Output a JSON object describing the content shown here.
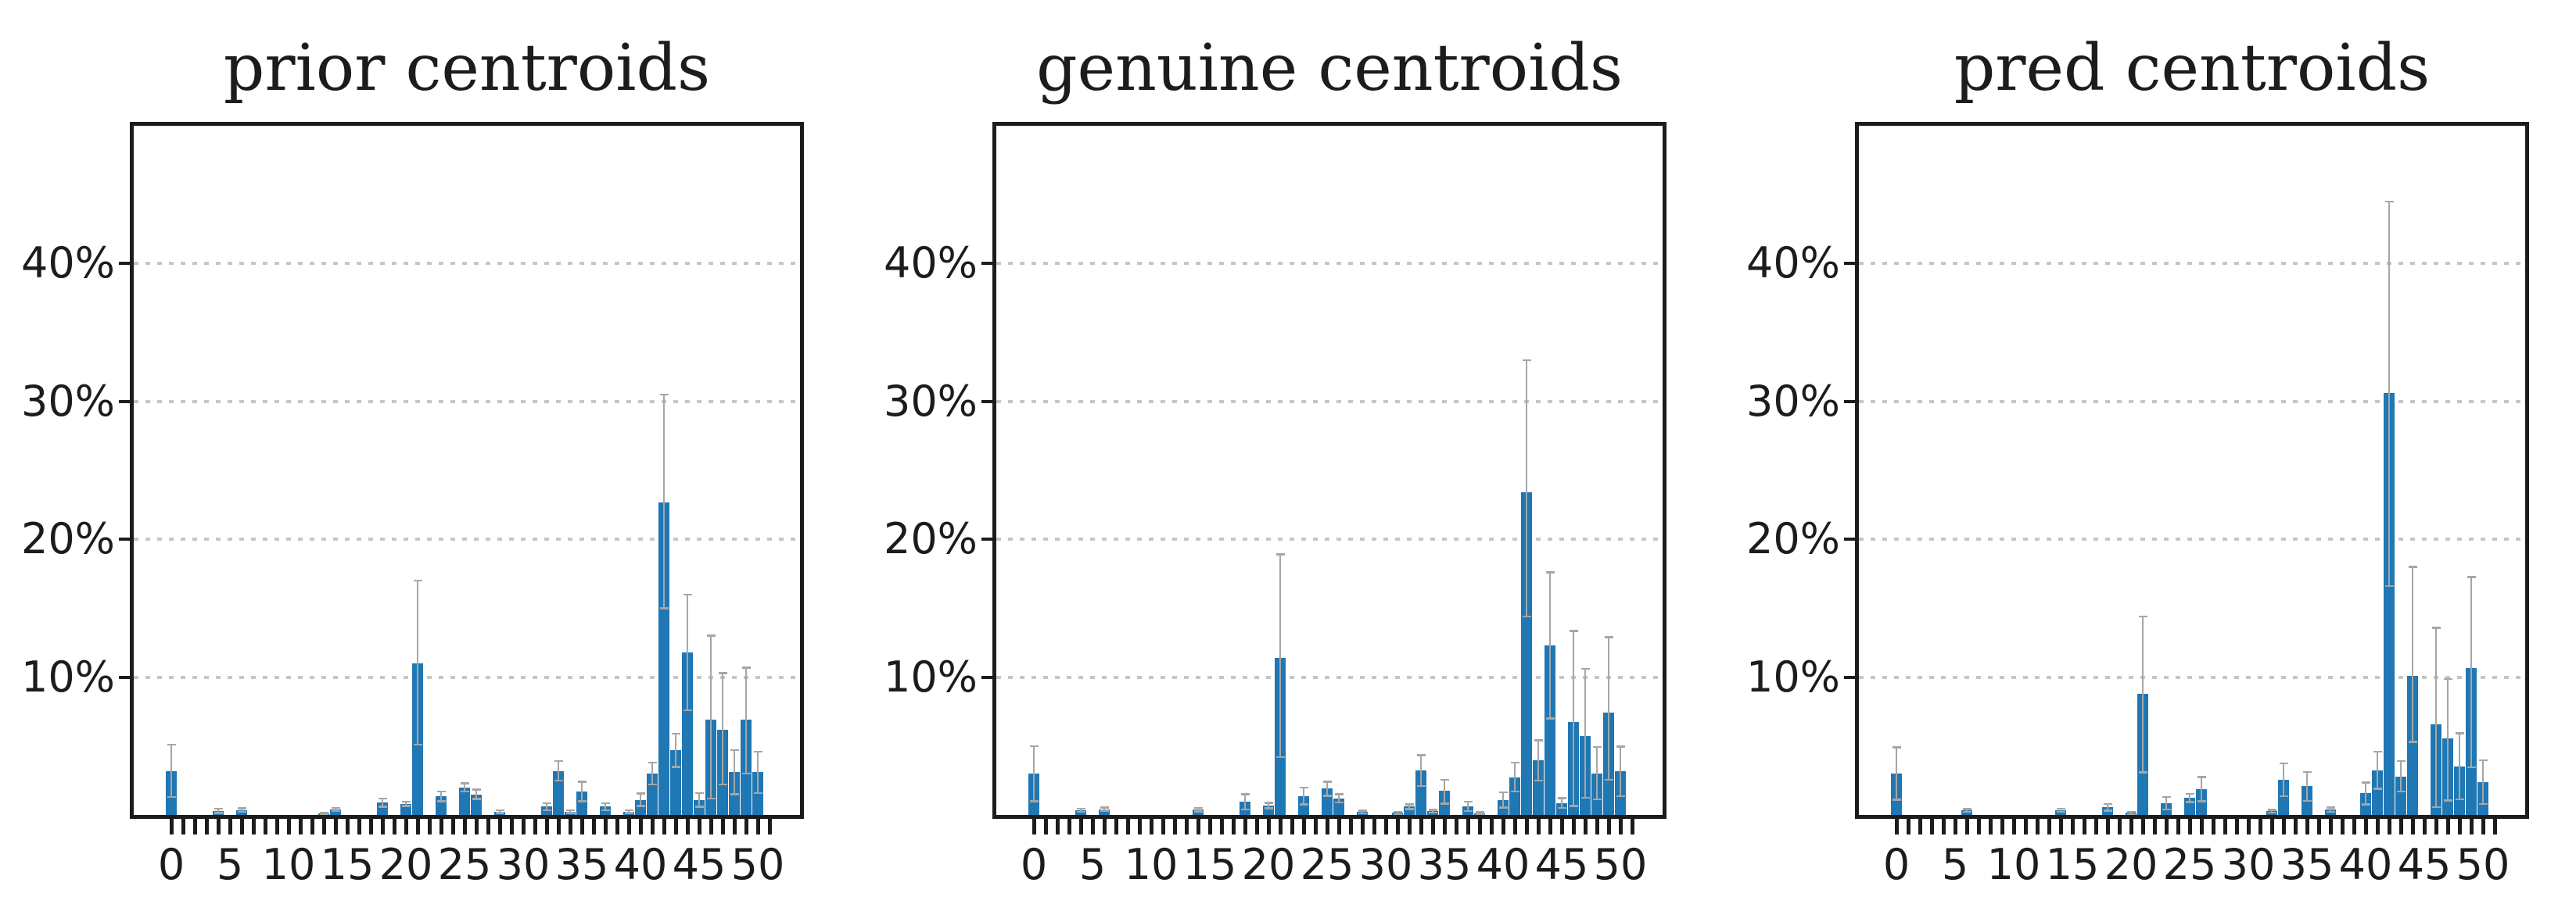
{
  "figure": {
    "background": "#ffffff",
    "text_color": "#1c1c1c",
    "grid_color": "#c6c6c6",
    "grid_style": "dotted-horizontal"
  },
  "chart_data": [
    {
      "type": "bar",
      "title": "prior centroids",
      "xlabel": "",
      "ylabel": "",
      "xlim": [
        -3.2,
        53.6
      ],
      "ylim": [
        0,
        50
      ],
      "bar_color": "#1f77b4",
      "error_color": "#a6a6a6",
      "yticks": [
        {
          "v": 10,
          "label": "10%"
        },
        {
          "v": 20,
          "label": "20%"
        },
        {
          "v": 30,
          "label": "30%"
        },
        {
          "v": 40,
          "label": "40%"
        }
      ],
      "xticks": [
        {
          "v": 0,
          "label": "0"
        },
        {
          "v": 5,
          "label": "5"
        },
        {
          "v": 10,
          "label": "10"
        },
        {
          "v": 15,
          "label": "15"
        },
        {
          "v": 20,
          "label": "20"
        },
        {
          "v": 25,
          "label": "25"
        },
        {
          "v": 30,
          "label": "30"
        },
        {
          "v": 35,
          "label": "35"
        },
        {
          "v": 40,
          "label": "40"
        },
        {
          "v": 45,
          "label": "45"
        },
        {
          "v": 50,
          "label": "50"
        }
      ],
      "minor_ticks": {
        "start": 0,
        "end": 51,
        "step": 1
      },
      "bars": [
        [
          0,
          3.2,
          1.9,
          1.9
        ],
        [
          4,
          0.3,
          0.15,
          0.15
        ],
        [
          6,
          0.35,
          0.12,
          0.12
        ],
        [
          13,
          0.1,
          0.05,
          0.05
        ],
        [
          14,
          0.4,
          0.12,
          0.12
        ],
        [
          18,
          0.9,
          0.3,
          0.3
        ],
        [
          20,
          0.8,
          0.15,
          0.15
        ],
        [
          21,
          11.0,
          6.0,
          5.9
        ],
        [
          23,
          1.35,
          0.35,
          0.35
        ],
        [
          25,
          2.0,
          0.3,
          0.3
        ],
        [
          26,
          1.5,
          0.35,
          0.35
        ],
        [
          28,
          0.25,
          0.1,
          0.1
        ],
        [
          32,
          0.6,
          0.25,
          0.25
        ],
        [
          33,
          3.2,
          0.7,
          0.7
        ],
        [
          34,
          0.25,
          0.1,
          0.1
        ],
        [
          35,
          1.7,
          0.7,
          0.7
        ],
        [
          37,
          0.6,
          0.25,
          0.25
        ],
        [
          39,
          0.25,
          0.1,
          0.1
        ],
        [
          40,
          1.1,
          0.45,
          0.45
        ],
        [
          41,
          3.0,
          0.8,
          0.8
        ],
        [
          42,
          22.7,
          7.8,
          7.7
        ],
        [
          43,
          4.7,
          1.2,
          1.2
        ],
        [
          44,
          11.8,
          4.2,
          4.2
        ],
        [
          45,
          1.1,
          0.5,
          0.5
        ],
        [
          46,
          6.9,
          6.1,
          5.7
        ],
        [
          47,
          6.2,
          4.1,
          4.0
        ],
        [
          48,
          3.1,
          1.6,
          1.6
        ],
        [
          49,
          6.9,
          3.8,
          3.9
        ],
        [
          50,
          3.1,
          1.5,
          1.5
        ]
      ]
    },
    {
      "type": "bar",
      "title": "genuine centroids",
      "xlabel": "",
      "ylabel": "",
      "xlim": [
        -3.2,
        53.6
      ],
      "ylim": [
        0,
        50
      ],
      "bar_color": "#1f77b4",
      "error_color": "#a6a6a6",
      "yticks": [
        {
          "v": 10,
          "label": "10%"
        },
        {
          "v": 20,
          "label": "20%"
        },
        {
          "v": 30,
          "label": "30%"
        },
        {
          "v": 40,
          "label": "40%"
        }
      ],
      "xticks": [
        {
          "v": 0,
          "label": "0"
        },
        {
          "v": 5,
          "label": "5"
        },
        {
          "v": 10,
          "label": "10"
        },
        {
          "v": 15,
          "label": "15"
        },
        {
          "v": 20,
          "label": "20"
        },
        {
          "v": 25,
          "label": "25"
        },
        {
          "v": 30,
          "label": "30"
        },
        {
          "v": 35,
          "label": "35"
        },
        {
          "v": 40,
          "label": "40"
        },
        {
          "v": 45,
          "label": "45"
        },
        {
          "v": 50,
          "label": "50"
        }
      ],
      "minor_ticks": {
        "start": 0,
        "end": 51,
        "step": 1
      },
      "bars": [
        [
          0,
          3.0,
          2.0,
          2.0
        ],
        [
          4,
          0.34,
          0.12,
          0.12
        ],
        [
          6,
          0.42,
          0.12,
          0.12
        ],
        [
          14,
          0.38,
          0.12,
          0.12
        ],
        [
          18,
          0.95,
          0.55,
          0.55
        ],
        [
          20,
          0.67,
          0.2,
          0.2
        ],
        [
          21,
          11.4,
          7.5,
          7.2
        ],
        [
          23,
          1.37,
          0.6,
          0.6
        ],
        [
          25,
          1.9,
          0.5,
          0.5
        ],
        [
          26,
          1.2,
          0.3,
          0.3
        ],
        [
          28,
          0.2,
          0.1,
          0.1
        ],
        [
          31,
          0.15,
          0.08,
          0.08
        ],
        [
          32,
          0.6,
          0.17,
          0.17
        ],
        [
          33,
          3.25,
          1.1,
          1.15
        ],
        [
          34,
          0.28,
          0.1,
          0.1
        ],
        [
          35,
          1.76,
          0.8,
          0.95
        ],
        [
          37,
          0.62,
          0.35,
          0.35
        ],
        [
          38,
          0.13,
          0.07,
          0.07
        ],
        [
          40,
          1.08,
          0.55,
          0.55
        ],
        [
          41,
          2.74,
          1.05,
          1.05
        ],
        [
          42,
          23.4,
          9.6,
          9.0
        ],
        [
          43,
          3.95,
          1.45,
          1.45
        ],
        [
          44,
          12.3,
          5.3,
          5.3
        ],
        [
          45,
          0.86,
          0.35,
          0.35
        ],
        [
          46,
          6.76,
          6.6,
          6.1
        ],
        [
          47,
          5.75,
          4.85,
          4.5
        ],
        [
          48,
          3.03,
          1.9,
          1.9
        ],
        [
          49,
          7.4,
          5.5,
          4.85
        ],
        [
          50,
          3.16,
          1.8,
          1.8
        ]
      ]
    },
    {
      "type": "bar",
      "title": "pred centroids",
      "xlabel": "",
      "ylabel": "",
      "xlim": [
        -3.2,
        53.6
      ],
      "ylim": [
        0,
        50
      ],
      "bar_color": "#1f77b4",
      "error_color": "#a6a6a6",
      "yticks": [
        {
          "v": 10,
          "label": "10%"
        },
        {
          "v": 20,
          "label": "20%"
        },
        {
          "v": 30,
          "label": "30%"
        },
        {
          "v": 40,
          "label": "40%"
        }
      ],
      "xticks": [
        {
          "v": 0,
          "label": "0"
        },
        {
          "v": 5,
          "label": "5"
        },
        {
          "v": 10,
          "label": "10"
        },
        {
          "v": 15,
          "label": "15"
        },
        {
          "v": 20,
          "label": "20"
        },
        {
          "v": 25,
          "label": "25"
        },
        {
          "v": 30,
          "label": "30"
        },
        {
          "v": 35,
          "label": "35"
        },
        {
          "v": 40,
          "label": "40"
        },
        {
          "v": 45,
          "label": "45"
        },
        {
          "v": 50,
          "label": "50"
        }
      ],
      "minor_ticks": {
        "start": 0,
        "end": 51,
        "step": 1
      },
      "bars": [
        [
          0,
          3.0,
          1.9,
          1.9
        ],
        [
          6,
          0.33,
          0.1,
          0.1
        ],
        [
          14,
          0.34,
          0.12,
          0.12
        ],
        [
          18,
          0.55,
          0.25,
          0.25
        ],
        [
          20,
          0.15,
          0.08,
          0.08
        ],
        [
          21,
          8.8,
          5.6,
          5.7
        ],
        [
          23,
          0.85,
          0.45,
          0.45
        ],
        [
          25,
          1.23,
          0.3,
          0.3
        ],
        [
          26,
          1.85,
          0.9,
          0.85
        ],
        [
          32,
          0.27,
          0.1,
          0.1
        ],
        [
          33,
          2.55,
          1.2,
          1.2
        ],
        [
          35,
          2.08,
          1.05,
          1.05
        ],
        [
          37,
          0.38,
          0.15,
          0.15
        ],
        [
          40,
          1.56,
          0.8,
          0.8
        ],
        [
          41,
          3.24,
          1.35,
          1.35
        ],
        [
          42,
          30.6,
          13.9,
          14.0
        ],
        [
          43,
          2.8,
          1.1,
          1.1
        ],
        [
          44,
          10.1,
          7.9,
          4.8
        ],
        [
          46,
          6.57,
          7.0,
          6.0
        ],
        [
          47,
          5.56,
          4.3,
          4.5
        ],
        [
          48,
          3.52,
          2.4,
          2.4
        ],
        [
          49,
          10.67,
          6.6,
          7.2
        ],
        [
          50,
          2.38,
          1.6,
          1.6
        ]
      ]
    }
  ]
}
